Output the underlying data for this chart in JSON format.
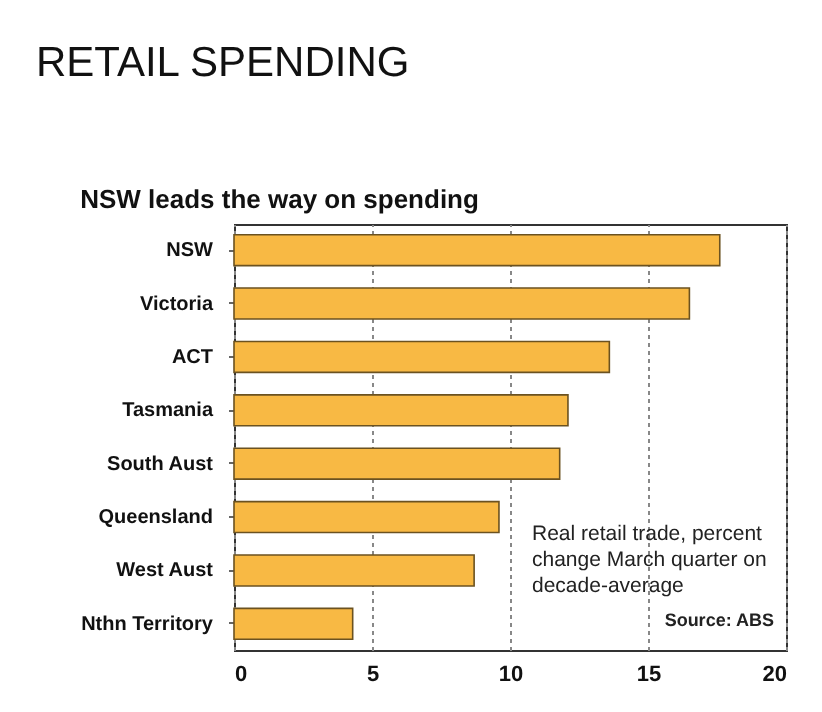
{
  "chart_data": {
    "type": "bar",
    "orientation": "horizontal",
    "title": "RETAIL SPENDING",
    "subtitle": "NSW leads the way on spending",
    "categories": [
      "NSW",
      "Victoria",
      "ACT",
      "Tasmania",
      "South Aust",
      "Queensland",
      "West Aust",
      "Nthn Territory"
    ],
    "values": [
      17.6,
      16.5,
      13.6,
      12.1,
      11.8,
      9.6,
      8.7,
      4.3
    ],
    "color": "#f8b944",
    "xlim": [
      0,
      20
    ],
    "xticks": [
      0,
      5,
      10,
      15,
      20
    ],
    "grid": "x",
    "annotations": [
      "Real retail trade, percent change March quarter on decade-average",
      "Source: ABS"
    ]
  }
}
